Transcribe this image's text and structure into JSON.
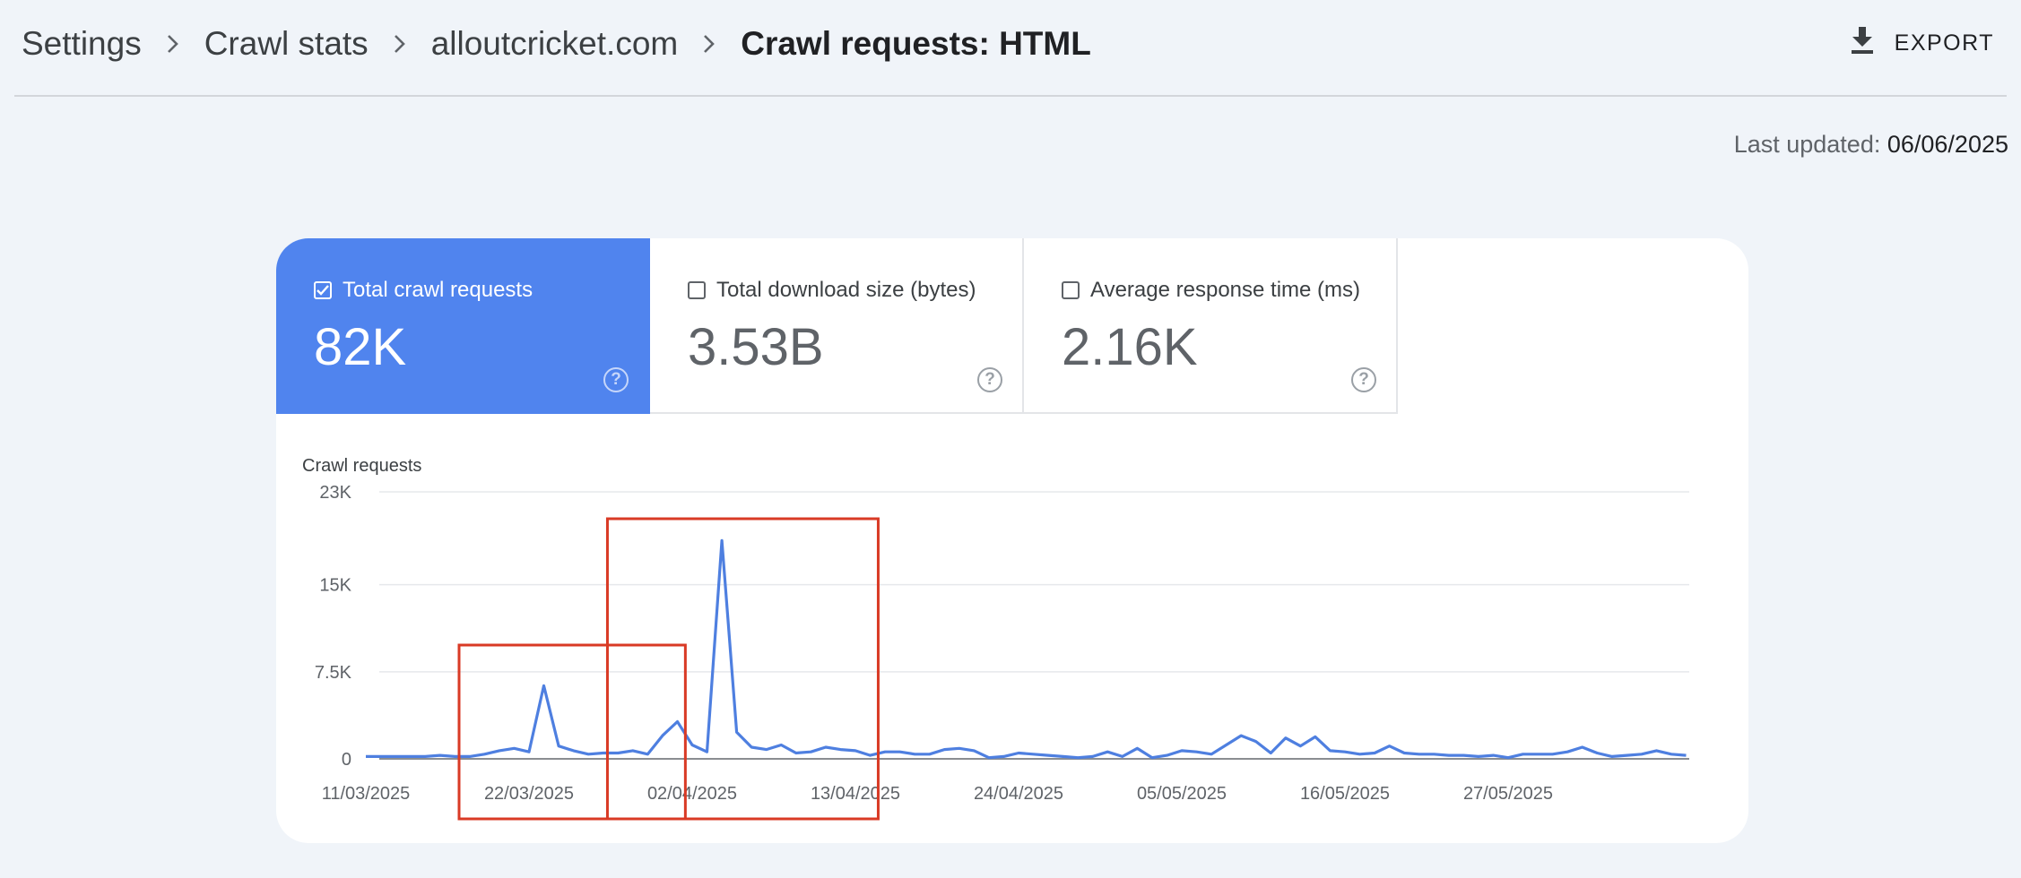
{
  "breadcrumb": {
    "items": [
      "Settings",
      "Crawl stats",
      "alloutcricket.com"
    ],
    "current": "Crawl requests: HTML"
  },
  "toolbar": {
    "export_label": "EXPORT",
    "export_icon": "download-icon"
  },
  "last_updated": {
    "label": "Last updated:",
    "value": "06/06/2025"
  },
  "metrics": [
    {
      "label": "Total crawl requests",
      "value": "82K",
      "checked": true
    },
    {
      "label": "Total download size (bytes)",
      "value": "3.53B",
      "checked": false
    },
    {
      "label": "Average response time (ms)",
      "value": "2.16K",
      "checked": false
    }
  ],
  "colors": {
    "accent": "#5084ee",
    "series": "#4e7fe0",
    "highlight": "#d93a25",
    "background": "#f0f4f9"
  },
  "chart_data": {
    "type": "line",
    "title": "Crawl requests",
    "ylim": [
      0,
      23000
    ],
    "y_ticks": [
      {
        "value": 0,
        "label": "0"
      },
      {
        "value": 7500,
        "label": "7.5K"
      },
      {
        "value": 15000,
        "label": "15K"
      },
      {
        "value": 23000,
        "label": "23K"
      }
    ],
    "x_ticks": [
      "11/03/2025",
      "22/03/2025",
      "02/04/2025",
      "13/04/2025",
      "24/04/2025",
      "05/05/2025",
      "16/05/2025",
      "27/05/2025"
    ],
    "x_start": "11/03/2025",
    "x_end": "06/06/2025",
    "grid": true,
    "series": [
      {
        "values": [
          200,
          200,
          200,
          200,
          200,
          300,
          200,
          200,
          400,
          700,
          900,
          600,
          6300,
          1100,
          700,
          400,
          500,
          500,
          700,
          400,
          2000,
          3200,
          1200,
          600,
          18800,
          2300,
          1000,
          800,
          1200,
          500,
          600,
          1000,
          800,
          700,
          300,
          600,
          600,
          400,
          400,
          800,
          900,
          700,
          100,
          200,
          500,
          400,
          300,
          200,
          100,
          200,
          600,
          200,
          900,
          100,
          300,
          700,
          600,
          400,
          1200,
          2000,
          1500,
          500,
          1800,
          1100,
          1900,
          700,
          600,
          400,
          500,
          1100,
          500,
          400,
          400,
          300,
          300,
          200,
          300,
          100,
          400,
          400,
          400,
          600,
          1000,
          500,
          200,
          300,
          400,
          700,
          400,
          300
        ]
      }
    ],
    "highlight_boxes": [
      {
        "from": "22/03/2025",
        "to": "30/03/2025"
      },
      {
        "from": "01/04/2025",
        "to": "12/04/2025"
      }
    ]
  }
}
